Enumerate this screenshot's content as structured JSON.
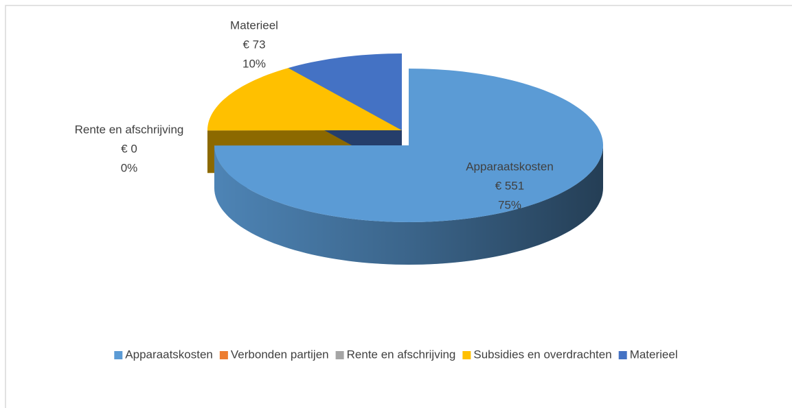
{
  "chart_data": {
    "type": "pie3d",
    "categories": [
      "Apparaatskosten",
      "Verbonden partijen",
      "Rente en afschrijving",
      "Subsidies en overdrachten",
      "Materieel"
    ],
    "values": [
      551,
      0,
      0,
      111,
      73
    ],
    "value_labels": [
      "€ 551",
      null,
      "€ 0",
      null,
      "€ 73"
    ],
    "percent_labels": [
      "75%",
      null,
      "0%",
      null,
      "10%"
    ],
    "colors": [
      "#5b9bd5",
      "#ed7d31",
      "#a5a5a5",
      "#ffc000",
      "#4472c4"
    ],
    "legend": "bottom"
  }
}
